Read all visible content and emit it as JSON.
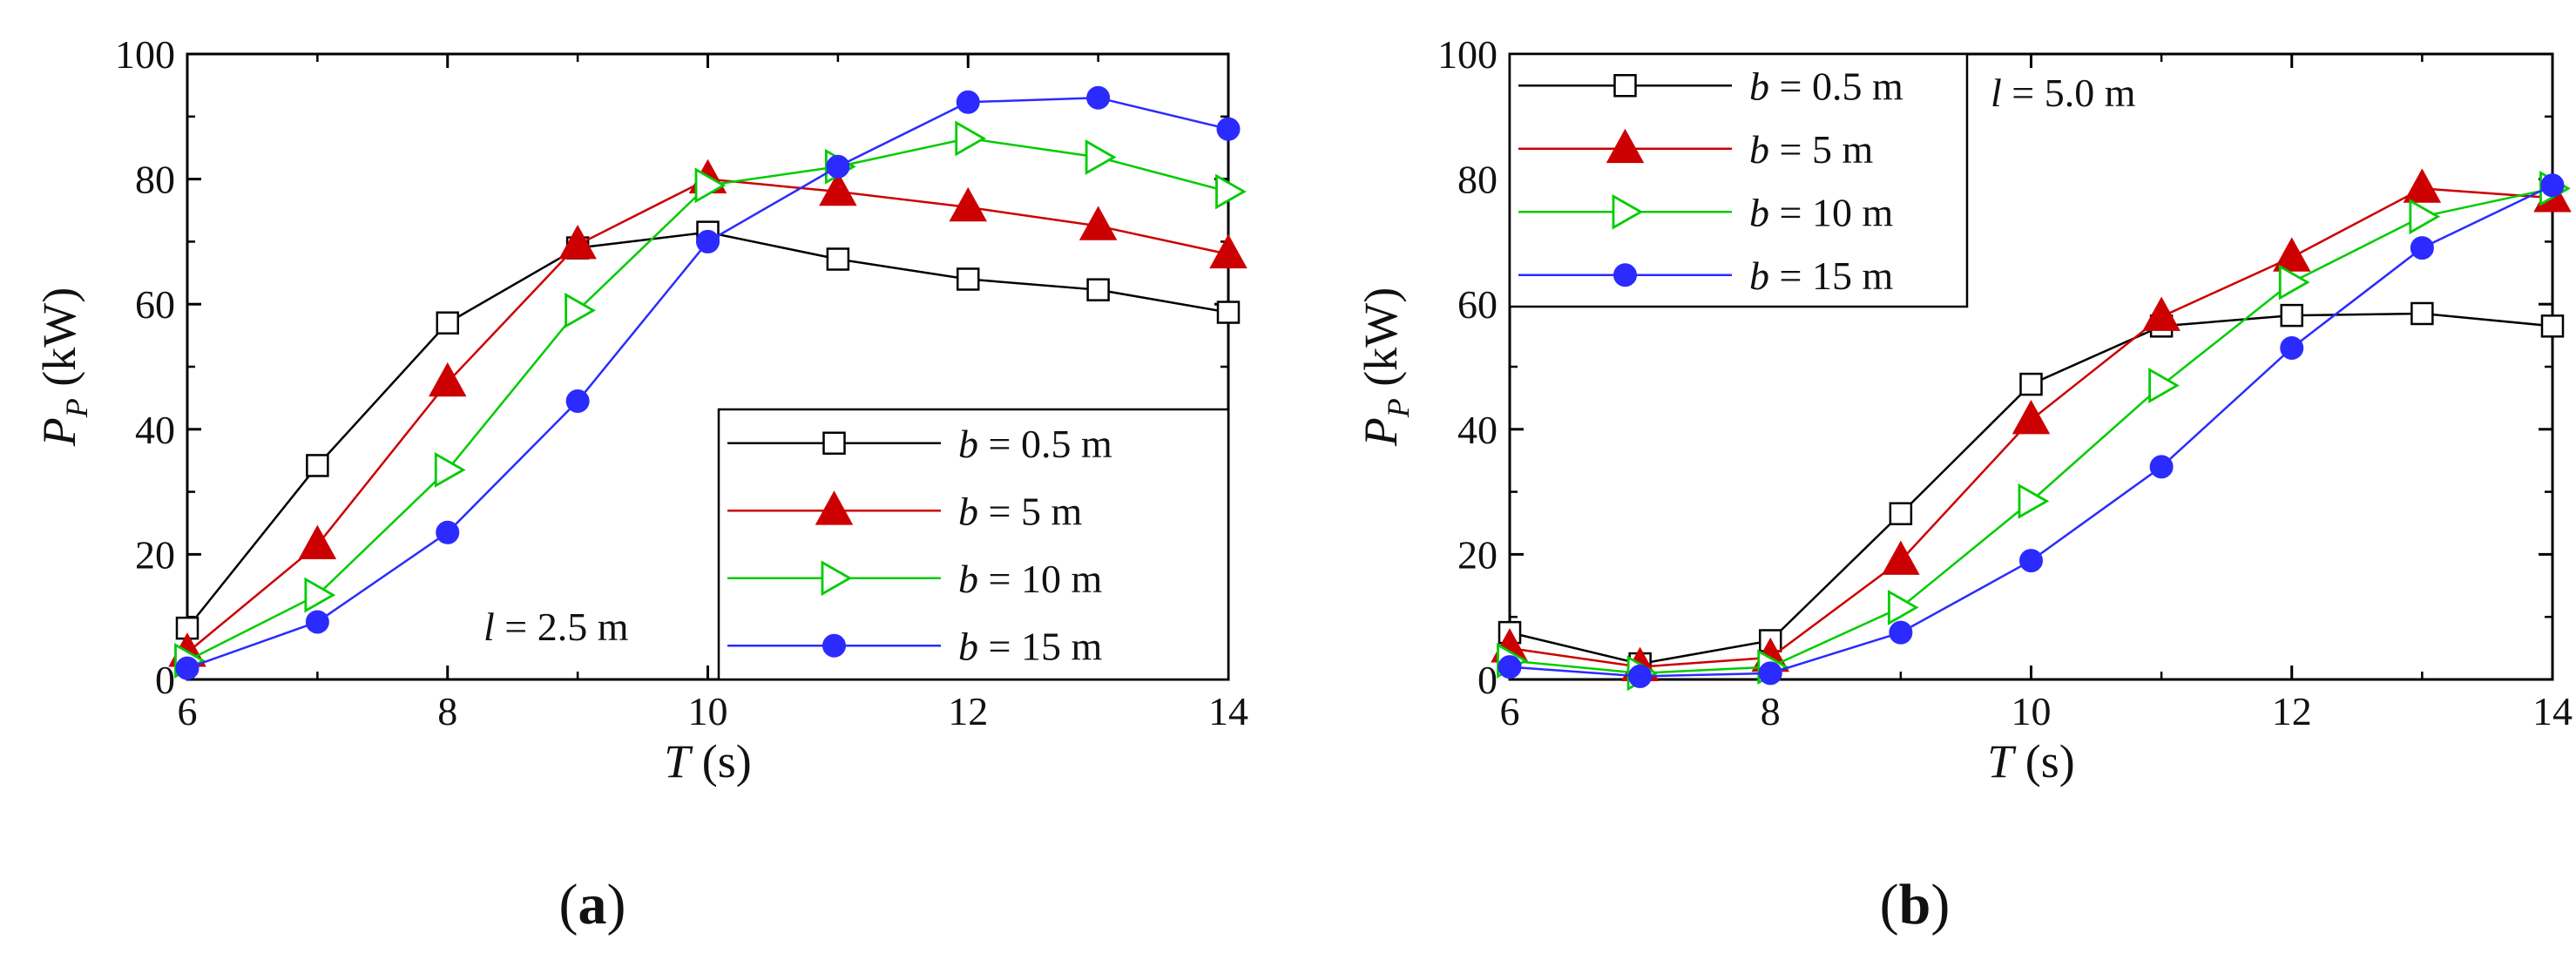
{
  "chart_data": [
    {
      "type": "line",
      "panel": "a",
      "panel_label": {
        "pre": "(",
        "letter": "a",
        "post": ")"
      },
      "xlabel": {
        "var": "T",
        "unit": " (s)"
      },
      "ylabel": {
        "var": "P",
        "sub": "P",
        "unit": " (kW)"
      },
      "xlim": [
        6,
        14
      ],
      "ylim": [
        0,
        100
      ],
      "xticks": [
        "6",
        "8",
        "10",
        "12",
        "14"
      ],
      "yticks": [
        "0",
        "20",
        "40",
        "60",
        "80",
        "100"
      ],
      "annotation": {
        "var": "l",
        "text": " = 2.5 m"
      },
      "legend_position": "lower-right",
      "x": [
        6,
        7,
        8,
        9,
        10,
        11,
        12,
        13,
        14
      ],
      "series": [
        {
          "name": "b = 0.5 m",
          "label_var": "b",
          "label_text": " = 0.5 m",
          "color": "#000000",
          "marker": "square-open",
          "values": [
            8.2,
            34.2,
            57.0,
            69.0,
            71.5,
            67.2,
            64.0,
            62.3,
            58.7
          ]
        },
        {
          "name": "b = 5 m",
          "label_var": "b",
          "label_text": " = 5 m",
          "color": "#cc0000",
          "marker": "triangle-up-filled",
          "values": [
            4.3,
            21.5,
            47.5,
            69.5,
            80.0,
            78.0,
            75.5,
            72.5,
            68.0
          ]
        },
        {
          "name": "b = 10 m",
          "label_var": "b",
          "label_text": " = 10 m",
          "color": "#00cc00",
          "marker": "triangle-right-open",
          "values": [
            3.0,
            13.5,
            33.5,
            59.0,
            79.0,
            82.0,
            86.5,
            83.5,
            78.0
          ]
        },
        {
          "name": "b = 15 m",
          "label_var": "b",
          "label_text": " = 15 m",
          "color": "#2b2bff",
          "marker": "circle-filled",
          "values": [
            1.8,
            9.2,
            23.5,
            44.5,
            70.0,
            82.0,
            92.3,
            93.0,
            88.0
          ]
        }
      ]
    },
    {
      "type": "line",
      "panel": "b",
      "panel_label": {
        "pre": "(",
        "letter": "b",
        "post": ")"
      },
      "xlabel": {
        "var": "T",
        "unit": " (s)"
      },
      "ylabel": {
        "var": "P",
        "sub": "P",
        "unit": " (kW)"
      },
      "xlim": [
        6,
        14
      ],
      "ylim": [
        0,
        100
      ],
      "xticks": [
        "6",
        "8",
        "10",
        "12",
        "14"
      ],
      "yticks": [
        "0",
        "20",
        "40",
        "60",
        "80",
        "100"
      ],
      "annotation": {
        "var": "l",
        "text": " = 5.0 m"
      },
      "legend_position": "top-left",
      "x": [
        6,
        7,
        8,
        9,
        10,
        11,
        12,
        13,
        14
      ],
      "series": [
        {
          "name": "b = 0.5 m",
          "label_var": "b",
          "label_text": " = 0.5 m",
          "color": "#000000",
          "marker": "square-open",
          "values": [
            7.5,
            2.5,
            6.2,
            26.5,
            47.2,
            56.5,
            58.2,
            58.5,
            56.5
          ]
        },
        {
          "name": "b = 5 m",
          "label_var": "b",
          "label_text": " = 5 m",
          "color": "#cc0000",
          "marker": "triangle-up-filled",
          "values": [
            5.0,
            2.0,
            3.5,
            19.0,
            41.5,
            58.0,
            67.5,
            78.5,
            77.0
          ]
        },
        {
          "name": "b = 10 m",
          "label_var": "b",
          "label_text": " = 10 m",
          "color": "#00cc00",
          "marker": "triangle-right-open",
          "values": [
            3.0,
            1.0,
            2.0,
            11.5,
            28.5,
            47.0,
            63.5,
            74.0,
            78.5
          ]
        },
        {
          "name": "b = 15 m",
          "label_var": "b",
          "label_text": " = 15 m",
          "color": "#2b2bff",
          "marker": "circle-filled",
          "values": [
            2.0,
            0.5,
            1.0,
            7.5,
            19.0,
            34.0,
            53.0,
            69.0,
            79.0
          ]
        }
      ]
    }
  ]
}
